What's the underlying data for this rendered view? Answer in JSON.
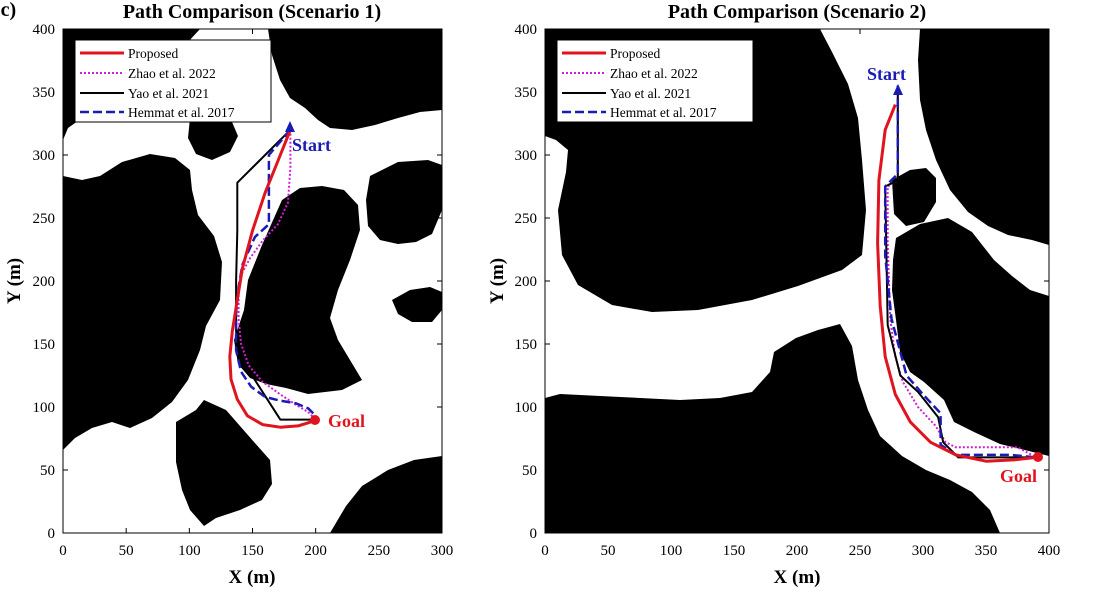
{
  "figure_label": "(c)",
  "colors": {
    "proposed": "#e0141e",
    "zhao": "#d21fd6",
    "yao": "#000000",
    "hemmat": "#1a1ab4",
    "start": "#1a1ab4",
    "goal": "#e0141e",
    "obstacle": "#000000",
    "free": "#ffffff"
  },
  "chart_data": [
    {
      "type": "line",
      "title": "Path Comparison (Scenario 1)",
      "xlabel": "X (m)",
      "ylabel": "Y (m)",
      "xlim": [
        0,
        300
      ],
      "ylim": [
        0,
        400
      ],
      "xticks": [
        0,
        50,
        100,
        150,
        200,
        250,
        300
      ],
      "yticks": [
        0,
        50,
        100,
        150,
        200,
        250,
        300,
        350,
        400
      ],
      "grid": false,
      "legend_position": "top-left",
      "start": {
        "label": "Start",
        "x": 180,
        "y": 320
      },
      "goal": {
        "label": "Goal",
        "x": 200,
        "y": 90
      },
      "series": [
        {
          "name": "Proposed",
          "style": "solid",
          "color": "#e0141e",
          "x": [
            180,
            172,
            160,
            150,
            142,
            138,
            134,
            132,
            133,
            138,
            146,
            158,
            172,
            186,
            196,
            200
          ],
          "y": [
            320,
            300,
            270,
            240,
            210,
            185,
            160,
            140,
            122,
            106,
            93,
            86,
            84,
            85,
            88,
            90
          ]
        },
        {
          "name": "Zhao et al. 2022",
          "style": "dotted",
          "color": "#d21fd6",
          "x": [
            180,
            180,
            178,
            170,
            158,
            148,
            141,
            139,
            139,
            141,
            147,
            158,
            172,
            184,
            194,
            200
          ],
          "y": [
            320,
            290,
            262,
            245,
            232,
            218,
            205,
            190,
            170,
            150,
            133,
            120,
            110,
            102,
            96,
            90
          ]
        },
        {
          "name": "Yao et al. 2021",
          "style": "solid",
          "color": "#000000",
          "x": [
            180,
            138,
            138,
            137,
            137,
            140,
            172,
            200
          ],
          "y": [
            320,
            278,
            240,
            200,
            160,
            140,
            90,
            90
          ]
        },
        {
          "name": "Hemmat et al. 2017",
          "style": "dashed",
          "color": "#1a1ab4",
          "x": [
            180,
            163,
            163,
            152,
            142,
            139,
            137,
            137,
            141,
            149,
            160,
            172,
            184,
            194,
            200
          ],
          "y": [
            320,
            300,
            245,
            235,
            213,
            195,
            175,
            145,
            128,
            116,
            108,
            105,
            103,
            99,
            93
          ]
        }
      ]
    },
    {
      "type": "line",
      "title": "Path Comparison (Scenario 2)",
      "xlabel": "X (m)",
      "ylabel": "Y (m)",
      "xlim": [
        0,
        400
      ],
      "ylim": [
        0,
        400
      ],
      "xticks": [
        0,
        50,
        100,
        150,
        200,
        250,
        300,
        350,
        400
      ],
      "yticks": [
        0,
        50,
        100,
        150,
        200,
        250,
        300,
        350,
        400
      ],
      "grid": false,
      "legend_position": "top-left",
      "start": {
        "label": "Start",
        "x": 280,
        "y": 355
      },
      "goal": {
        "label": "Goal",
        "x": 390,
        "y": 60
      },
      "series": [
        {
          "name": "Proposed",
          "style": "solid",
          "color": "#e0141e",
          "x": [
            278,
            270,
            265,
            264,
            266,
            270,
            278,
            290,
            306,
            326,
            350,
            372,
            390
          ],
          "y": [
            340,
            320,
            280,
            230,
            180,
            140,
            110,
            88,
            72,
            62,
            57,
            58,
            60
          ]
        },
        {
          "name": "Zhao et al. 2022",
          "style": "dotted",
          "color": "#d21fd6",
          "x": [
            280,
            280,
            272,
            272,
            274,
            278,
            284,
            296,
            310,
            318,
            326,
            345,
            375,
            390
          ],
          "y": [
            355,
            280,
            275,
            230,
            170,
            140,
            120,
            100,
            85,
            72,
            68,
            68,
            68,
            60
          ]
        },
        {
          "name": "Yao et al. 2021",
          "style": "solid",
          "color": "#000000",
          "x": [
            280,
            280,
            270,
            272,
            282,
            296,
            312,
            316,
            328,
            350,
            390
          ],
          "y": [
            355,
            280,
            275,
            165,
            125,
            112,
            92,
            72,
            60,
            60,
            60
          ]
        },
        {
          "name": "Hemmat et al. 2017",
          "style": "dashed",
          "color": "#1a1ab4",
          "x": [
            280,
            280,
            270,
            270,
            275,
            287,
            300,
            314,
            314,
            326,
            350,
            370,
            390
          ],
          "y": [
            355,
            285,
            275,
            220,
            170,
            125,
            110,
            95,
            70,
            62,
            62,
            62,
            60
          ]
        }
      ]
    }
  ]
}
